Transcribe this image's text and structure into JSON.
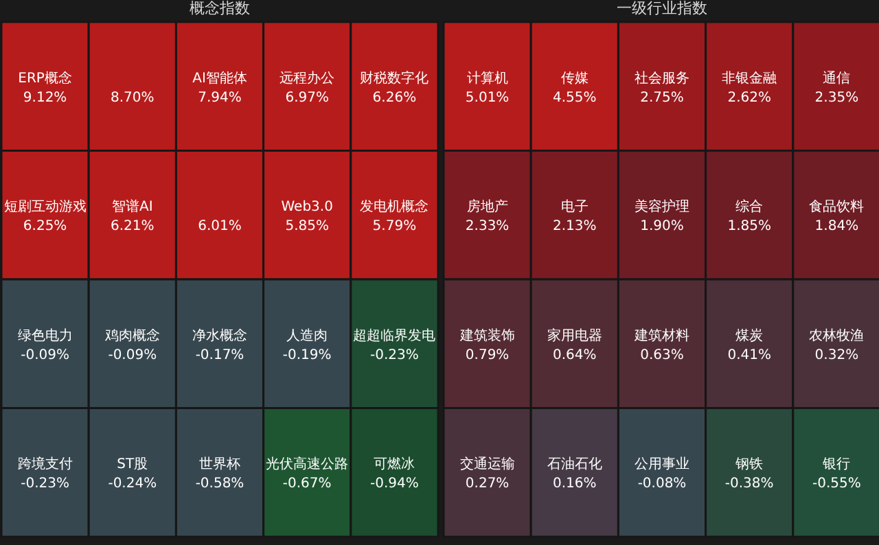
{
  "chart_data": [
    {
      "type": "other",
      "title": "概念指数",
      "categories": [
        "ERP概念",
        null,
        "AI智能体",
        "远程办公",
        "财税数字化",
        "短剧互动游戏",
        "智谱AI",
        null,
        "Web3.0",
        "发电机概念",
        "绿色电力",
        "鸡肉概念",
        "净水概念",
        "人造肉",
        "超超临界发电",
        "跨境支付",
        "ST股",
        "世界杯",
        "光伏高速公路",
        "可燃冰"
      ],
      "values": [
        9.12,
        8.7,
        7.94,
        6.97,
        6.26,
        6.25,
        6.21,
        6.01,
        5.85,
        5.79,
        -0.09,
        -0.09,
        -0.17,
        -0.19,
        -0.23,
        -0.23,
        -0.24,
        -0.58,
        -0.67,
        -0.94
      ],
      "value_labels": [
        "9.12%",
        "8.70%",
        "7.94%",
        "6.97%",
        "6.26%",
        "6.25%",
        "6.21%",
        "6.01%",
        "5.85%",
        "5.79%",
        "-0.09%",
        "-0.09%",
        "-0.17%",
        "-0.19%",
        "-0.23%",
        "-0.23%",
        "-0.24%",
        "-0.58%",
        "-0.67%",
        "-0.94%"
      ],
      "colors": [
        "#b71c1c",
        "#b71c1c",
        "#b71c1c",
        "#b71c1c",
        "#b71c1c",
        "#b71c1c",
        "#b71c1c",
        "#b71c1c",
        "#b71c1c",
        "#b71c1c",
        "#37474f",
        "#37474f",
        "#37474f",
        "#37474f",
        "#1f4d33",
        "#37474f",
        "#37474f",
        "#37474f",
        "#1e5631",
        "#1b4d2e"
      ]
    },
    {
      "type": "other",
      "title": "一级行业指数",
      "categories": [
        "计算机",
        "传媒",
        "社会服务",
        "非银金融",
        "通信",
        "房地产",
        "电子",
        "美容护理",
        "综合",
        "食品饮料",
        "建筑装饰",
        "家用电器",
        "建筑材料",
        "煤炭",
        "农林牧渔",
        "交通运输",
        "石油石化",
        "公用事业",
        "钢铁",
        "银行"
      ],
      "values": [
        5.01,
        4.55,
        2.75,
        2.62,
        2.35,
        2.33,
        2.13,
        1.9,
        1.85,
        1.84,
        0.79,
        0.64,
        0.63,
        0.41,
        0.32,
        0.27,
        0.16,
        -0.08,
        -0.38,
        -0.55
      ],
      "value_labels": [
        "5.01%",
        "4.55%",
        "2.75%",
        "2.62%",
        "2.35%",
        "2.33%",
        "2.13%",
        "1.90%",
        "1.85%",
        "1.84%",
        "0.79%",
        "0.64%",
        "0.63%",
        "0.41%",
        "0.32%",
        "0.27%",
        "0.16%",
        "-0.08%",
        "-0.38%",
        "-0.55%"
      ],
      "colors": [
        "#b71c1c",
        "#b71c1c",
        "#9a1a1e",
        "#9a1a1e",
        "#8e1a1f",
        "#7d1b22",
        "#7a1b22",
        "#6e1d25",
        "#6e1d25",
        "#6e1d25",
        "#552a33",
        "#522c35",
        "#522c35",
        "#4b3039",
        "#4a313a",
        "#4a323c",
        "#453a46",
        "#37474f",
        "#2a4a3d",
        "#23503a"
      ]
    }
  ]
}
